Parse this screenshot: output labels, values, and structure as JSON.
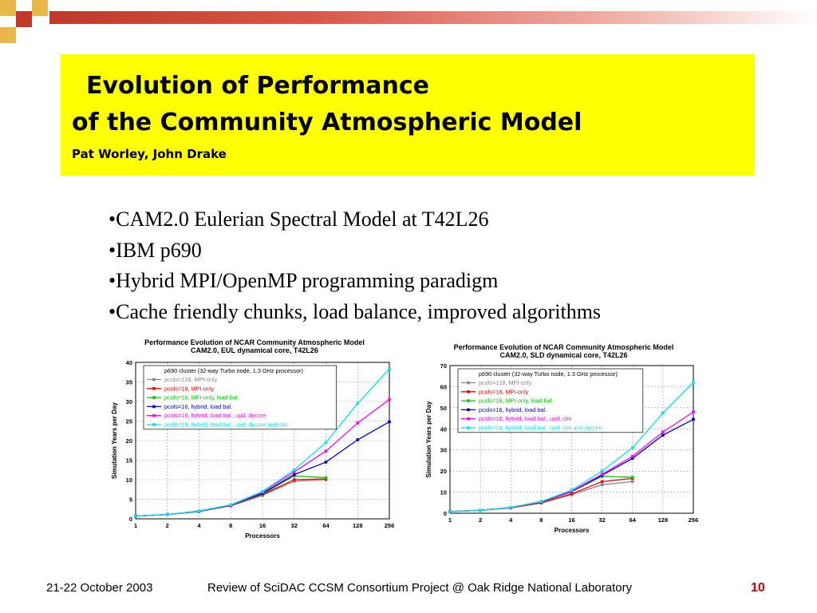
{
  "slide": {
    "title_line1": "Evolution of Performance",
    "title_line2": "of the Community Atmospheric Model",
    "authors": "Pat Worley, John Drake",
    "bullets": [
      "•CAM2.0 Eulerian Spectral Model at T42L26",
      "•IBM p690",
      "•Hybrid MPI/OpenMP programming paradigm",
      "•Cache friendly chunks, load balance, improved algorithms"
    ]
  },
  "footer": {
    "date": "21-22 October 2003",
    "center": "Review of SciDAC CCSM Consortium Project @ Oak Ridge National Laboratory",
    "page": "10"
  },
  "colors": {
    "accent_red": "#c0392b",
    "title_bg": "#ffff00"
  },
  "chart_data": [
    {
      "type": "line",
      "title": "Performance Evolution of NCAR Community Atmospheric Model",
      "subtitle": "CAM2.0, EUL dynamical core, T42L26",
      "xlabel": "Processors",
      "ylabel": "Simulation Years per Day",
      "categories": [
        "1",
        "2",
        "4",
        "8",
        "16",
        "32",
        "64",
        "128",
        "256"
      ],
      "ylim": [
        0,
        40
      ],
      "yticks": [
        0,
        5,
        10,
        15,
        20,
        25,
        30,
        35,
        40
      ],
      "grid": true,
      "legend_title": "p690 cluster (32-way Turbo node, 1.3 GHz processor)",
      "legend_position": "top-left",
      "series": [
        {
          "name": "pcols=128, MPI-only",
          "color": "#888888",
          "values": [
            0.7,
            1.1,
            1.9,
            3.3,
            6.0,
            9.6,
            10.0,
            null,
            null
          ]
        },
        {
          "name": "pcols=16, MPI-only",
          "color": "#ff0000",
          "values": [
            0.7,
            1.1,
            1.9,
            3.4,
            6.2,
            10.0,
            10.2,
            null,
            null
          ]
        },
        {
          "name": "pcols=16, MPI-only, load bal.",
          "color": "#00cc00",
          "values": [
            0.7,
            1.1,
            1.9,
            3.5,
            6.3,
            11.0,
            10.5,
            null,
            null
          ]
        },
        {
          "name": "pcols=16, hybrid, load bal.",
          "color": "#0000cc",
          "values": [
            0.7,
            1.1,
            1.9,
            3.5,
            6.5,
            11.3,
            14.5,
            20.2,
            24.8
          ]
        },
        {
          "name": "pcols=16, hybrid, load bal., upd. dycore",
          "color": "#ff00ff",
          "values": [
            0.7,
            1.1,
            2.0,
            3.5,
            6.8,
            12.0,
            17.3,
            24.5,
            30.5
          ]
        },
        {
          "name": "pcols=16, hybrid, load bal., upd. dycore and clm",
          "color": "#00e5ee",
          "values": [
            0.7,
            1.1,
            2.0,
            3.6,
            7.0,
            12.5,
            19.5,
            29.5,
            38.3
          ]
        }
      ]
    },
    {
      "type": "line",
      "title": "Performance Evolution of NCAR Community Atmospheric Model",
      "subtitle": "CAM2.0, SLD dynamical core, T42L26",
      "xlabel": "Processors",
      "ylabel": "Simulation Years per Day",
      "categories": [
        "1",
        "2",
        "4",
        "8",
        "16",
        "32",
        "64",
        "128",
        "256"
      ],
      "ylim": [
        0,
        70
      ],
      "yticks": [
        0,
        10,
        20,
        30,
        40,
        50,
        60,
        70
      ],
      "grid": true,
      "legend_title": "p690 cluster (32-way Turbo node, 1.3 GHz processor)",
      "legend_position": "top-left",
      "series": [
        {
          "name": "pcols=128, MPI-only",
          "color": "#888888",
          "values": [
            0.8,
            1.4,
            2.5,
            4.8,
            8.8,
            13.5,
            15.0,
            null,
            null
          ]
        },
        {
          "name": "pcols=16, MPI-only",
          "color": "#ff0000",
          "values": [
            0.8,
            1.4,
            2.6,
            5.0,
            9.2,
            15.0,
            16.5,
            null,
            null
          ]
        },
        {
          "name": "pcols=16, MPI-only, load bal.",
          "color": "#00cc00",
          "values": [
            0.8,
            1.4,
            2.7,
            5.3,
            10.2,
            17.5,
            17.0,
            null,
            null
          ]
        },
        {
          "name": "pcols=16, hybrid, load bal.",
          "color": "#0000cc",
          "values": [
            0.8,
            1.4,
            2.7,
            5.4,
            10.3,
            18.0,
            26.0,
            37.0,
            44.5
          ]
        },
        {
          "name": "pcols=16, hybrid, load bal., upd. clm",
          "color": "#ff00ff",
          "values": [
            0.8,
            1.4,
            2.7,
            5.5,
            10.5,
            18.5,
            27.0,
            38.5,
            48.0
          ]
        },
        {
          "name": "pcols=16, hybrid, load bal., upd. clm and dycore",
          "color": "#00e5ee",
          "values": [
            0.8,
            1.4,
            2.8,
            5.6,
            11.0,
            20.0,
            31.0,
            47.5,
            62.0
          ]
        }
      ]
    }
  ]
}
